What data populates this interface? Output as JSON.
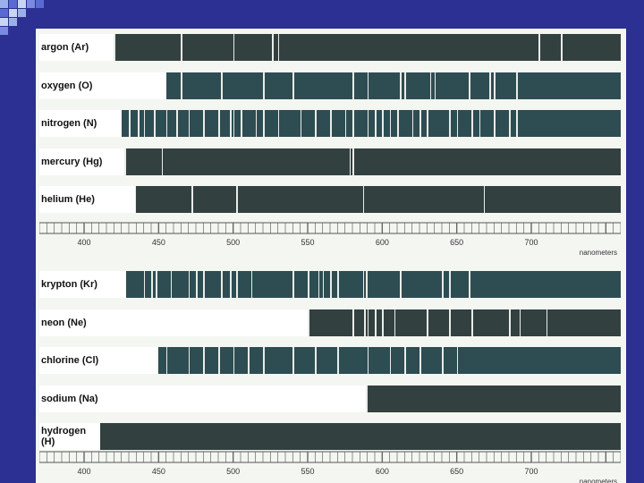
{
  "colors": {
    "background": "#2b3092",
    "panel": "#f4f6f1",
    "strip_gray": "#334040",
    "strip_teal": "#2e4d52",
    "label_bg": "#ffffff",
    "line_light": "#e8ece8",
    "line_dark": "#222222"
  },
  "ruler": {
    "min_nm": 370,
    "max_nm": 760,
    "tick_labels": [
      "400",
      "450",
      "500",
      "550",
      "600",
      "650",
      "700"
    ],
    "unit": "nanometers"
  },
  "group_top": [
    {
      "label": "argon (Ar)",
      "style": "gray",
      "label_end_nm": 420,
      "lines": [
        420,
        465,
        500,
        526,
        530,
        705,
        720
      ]
    },
    {
      "label": "oxygen (O)",
      "style": "teal",
      "label_end_nm": 455,
      "lines": [
        465,
        492,
        520,
        540,
        580,
        590,
        612,
        615,
        632,
        635,
        658,
        672,
        675,
        690
      ]
    },
    {
      "label": "nitrogen (N)",
      "style": "teal",
      "label_end_nm": 425,
      "lines": [
        430,
        436,
        440,
        447,
        455,
        462,
        470,
        480,
        490,
        498,
        500,
        505,
        515,
        520,
        530,
        545,
        555,
        565,
        575,
        580,
        590,
        595,
        600,
        605,
        610,
        620,
        625,
        630,
        645,
        650,
        660,
        665,
        675,
        685,
        690
      ]
    },
    {
      "label": "mercury (Hg)",
      "style": "gray",
      "label_end_nm": 427,
      "lines": [
        427,
        452,
        578,
        580
      ]
    },
    {
      "label": "helium (He)",
      "style": "gray",
      "label_end_nm": 434,
      "lines": [
        434,
        472,
        502,
        587,
        668
      ]
    }
  ],
  "group_bottom": [
    {
      "label": "krypton (Kr)",
      "style": "teal",
      "label_end_nm": 428,
      "lines": [
        440,
        445,
        448,
        458,
        470,
        475,
        480,
        492,
        498,
        502,
        512,
        540,
        550,
        557,
        560,
        565,
        570,
        587,
        589,
        612,
        640,
        645,
        658
      ]
    },
    {
      "label": "neon (Ne)",
      "style": "gray",
      "label_end_nm": 550,
      "lines": [
        550,
        580,
        588,
        590,
        595,
        600,
        608,
        630,
        645,
        660,
        685,
        692,
        710
      ]
    },
    {
      "label": "chlorine (Cl)",
      "style": "teal",
      "label_end_nm": 449,
      "lines": [
        449,
        455,
        470,
        480,
        490,
        500,
        510,
        520,
        540,
        555,
        570,
        590,
        605,
        615,
        625,
        640,
        650
      ]
    },
    {
      "label": "sodium (Na)",
      "style": "gray",
      "label_end_nm": 589,
      "lines": [
        589
      ]
    },
    {
      "label": "hydrogen (H)",
      "style": "gray",
      "label_end_nm": 403,
      "lines": [
        404
      ]
    }
  ]
}
